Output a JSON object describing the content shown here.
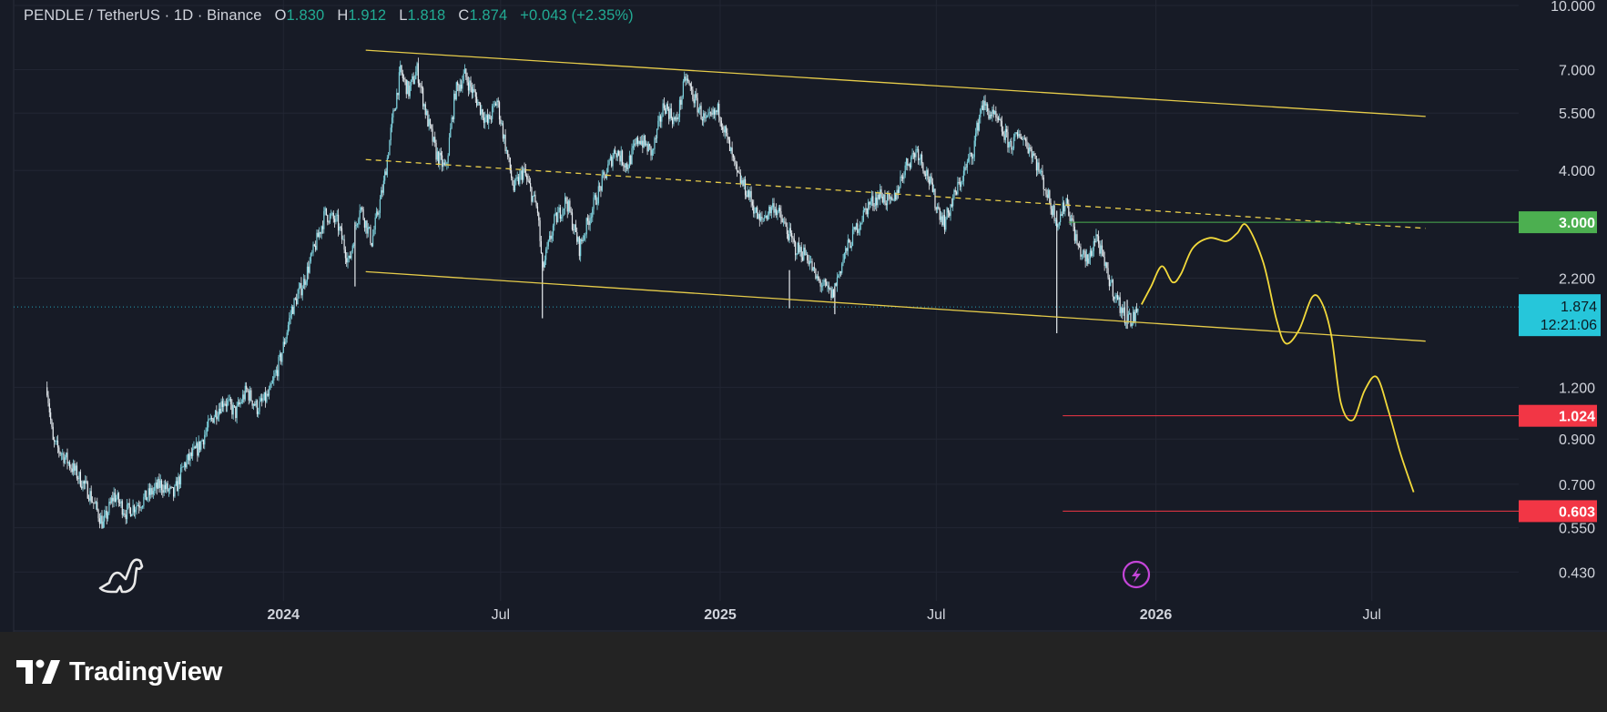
{
  "header": {
    "symbol": "PENDLE / TetherUS · 1D · Binance",
    "open_label": "O",
    "open": "1.830",
    "high_label": "H",
    "high": "1.912",
    "low_label": "L",
    "low": "1.818",
    "close_label": "C",
    "close": "1.874",
    "change": "+0.043 (+2.35%)"
  },
  "brand": {
    "name": "TradingView"
  },
  "colors": {
    "background": "#171b26",
    "grid": "#222633",
    "candle_up": "#7fd4e0",
    "candle_down": "#e8eef2",
    "channel": "#e6cc4a",
    "projection": "#f2d93b",
    "target_green": "#4caf50",
    "target_red": "#f23645",
    "price_tag": "#26c6da"
  },
  "icons": {
    "watermark": "dinosaur-icon",
    "event": "lightning-icon",
    "brand": "tradingview-logo-icon"
  },
  "chart_data": {
    "type": "candlestick",
    "y_scale": "log",
    "ylim": [
      0.37,
      10.0
    ],
    "x_range": [
      "2023-05-20",
      "2026-11-01"
    ],
    "y_ticks": [
      "10.000",
      "7.000",
      "5.500",
      "4.000",
      "2.200",
      "1.200",
      "0.900",
      "0.700",
      "0.550",
      "0.430"
    ],
    "x_ticks": [
      {
        "label": "2024",
        "date": "2024-01-01"
      },
      {
        "label": "Jul",
        "date": "2024-07-01"
      },
      {
        "label": "2025",
        "date": "2025-01-01"
      },
      {
        "label": "Jul",
        "date": "2025-07-01"
      },
      {
        "label": "2026",
        "date": "2026-01-01"
      },
      {
        "label": "Jul",
        "date": "2026-07-01"
      }
    ],
    "price_path": [
      [
        "2023-06-17",
        1.2
      ],
      [
        "2023-06-22",
        0.88
      ],
      [
        "2023-07-01",
        0.82
      ],
      [
        "2023-07-12",
        0.74
      ],
      [
        "2023-07-22",
        0.67
      ],
      [
        "2023-08-03",
        0.56
      ],
      [
        "2023-08-12",
        0.66
      ],
      [
        "2023-08-22",
        0.6
      ],
      [
        "2023-09-05",
        0.64
      ],
      [
        "2023-09-20",
        0.7
      ],
      [
        "2023-10-01",
        0.66
      ],
      [
        "2023-10-10",
        0.78
      ],
      [
        "2023-10-22",
        0.86
      ],
      [
        "2023-11-03",
        1.02
      ],
      [
        "2023-11-12",
        1.12
      ],
      [
        "2023-11-22",
        1.04
      ],
      [
        "2023-12-01",
        1.18
      ],
      [
        "2023-12-10",
        1.07
      ],
      [
        "2023-12-20",
        1.15
      ],
      [
        "2023-12-30",
        1.42
      ],
      [
        "2024-01-08",
        1.85
      ],
      [
        "2024-01-18",
        2.15
      ],
      [
        "2024-01-28",
        2.65
      ],
      [
        "2024-02-05",
        3.15
      ],
      [
        "2024-02-15",
        3.0
      ],
      [
        "2024-02-25",
        2.4
      ],
      [
        "2024-03-05",
        3.3
      ],
      [
        "2024-03-15",
        2.7
      ],
      [
        "2024-03-25",
        3.7
      ],
      [
        "2024-04-01",
        5.2
      ],
      [
        "2024-04-08",
        6.9
      ],
      [
        "2024-04-15",
        6.2
      ],
      [
        "2024-04-22",
        7.0
      ],
      [
        "2024-04-30",
        5.4
      ],
      [
        "2024-05-08",
        4.4
      ],
      [
        "2024-05-16",
        4.0
      ],
      [
        "2024-05-24",
        6.2
      ],
      [
        "2024-06-01",
        6.8
      ],
      [
        "2024-06-10",
        6.0
      ],
      [
        "2024-06-20",
        5.2
      ],
      [
        "2024-06-28",
        5.9
      ],
      [
        "2024-07-05",
        4.6
      ],
      [
        "2024-07-12",
        3.6
      ],
      [
        "2024-07-20",
        4.0
      ],
      [
        "2024-08-01",
        3.2
      ],
      [
        "2024-08-05",
        2.3
      ],
      [
        "2024-08-15",
        3.0
      ],
      [
        "2024-08-25",
        3.4
      ],
      [
        "2024-09-05",
        2.6
      ],
      [
        "2024-09-15",
        3.2
      ],
      [
        "2024-09-25",
        3.8
      ],
      [
        "2024-10-05",
        4.5
      ],
      [
        "2024-10-15",
        4.1
      ],
      [
        "2024-10-25",
        4.8
      ],
      [
        "2024-11-05",
        4.4
      ],
      [
        "2024-11-15",
        5.8
      ],
      [
        "2024-11-25",
        5.2
      ],
      [
        "2024-12-03",
        6.7
      ],
      [
        "2024-12-12",
        5.8
      ],
      [
        "2024-12-20",
        5.2
      ],
      [
        "2024-12-31",
        5.6
      ],
      [
        "2025-01-08",
        4.6
      ],
      [
        "2025-01-15",
        3.9
      ],
      [
        "2025-01-25",
        3.5
      ],
      [
        "2025-02-03",
        3.0
      ],
      [
        "2025-02-15",
        3.3
      ],
      [
        "2025-02-25",
        2.9
      ],
      [
        "2025-03-05",
        2.6
      ],
      [
        "2025-03-15",
        2.5
      ],
      [
        "2025-03-22",
        2.2
      ],
      [
        "2025-04-05",
        2.0
      ],
      [
        "2025-04-15",
        2.5
      ],
      [
        "2025-04-25",
        2.9
      ],
      [
        "2025-05-05",
        3.3
      ],
      [
        "2025-05-15",
        3.5
      ],
      [
        "2025-05-25",
        3.3
      ],
      [
        "2025-06-05",
        4.1
      ],
      [
        "2025-06-15",
        4.5
      ],
      [
        "2025-06-25",
        3.8
      ],
      [
        "2025-07-01",
        3.3
      ],
      [
        "2025-07-08",
        3.0
      ],
      [
        "2025-07-15",
        3.4
      ],
      [
        "2025-07-25",
        4.0
      ],
      [
        "2025-08-01",
        4.5
      ],
      [
        "2025-08-08",
        5.8
      ],
      [
        "2025-08-15",
        5.5
      ],
      [
        "2025-08-22",
        5.2
      ],
      [
        "2025-09-01",
        4.6
      ],
      [
        "2025-09-10",
        4.9
      ],
      [
        "2025-09-20",
        4.4
      ],
      [
        "2025-09-28",
        3.8
      ],
      [
        "2025-10-05",
        3.3
      ],
      [
        "2025-10-11",
        3.0
      ],
      [
        "2025-10-18",
        3.4
      ],
      [
        "2025-10-28",
        2.6
      ],
      [
        "2025-11-05",
        2.4
      ],
      [
        "2025-11-12",
        2.8
      ],
      [
        "2025-11-20",
        2.3
      ],
      [
        "2025-11-28",
        2.0
      ],
      [
        "2025-12-05",
        1.8
      ],
      [
        "2025-12-12",
        1.74
      ],
      [
        "2025-12-18",
        1.87
      ]
    ],
    "spikes": [
      [
        "2024-03-01",
        3.0,
        2.1
      ],
      [
        "2024-08-05",
        2.5,
        1.76
      ],
      [
        "2025-02-28",
        2.3,
        1.86
      ],
      [
        "2025-04-07",
        2.1,
        1.8
      ],
      [
        "2025-10-10",
        3.2,
        1.62
      ],
      [
        "2025-12-08",
        1.95,
        1.66
      ]
    ],
    "channel_top": [
      [
        "2024-03-10",
        7.8
      ],
      [
        "2026-08-15",
        5.4
      ]
    ],
    "channel_mid": [
      [
        "2024-03-10",
        4.25
      ],
      [
        "2026-08-15",
        2.9
      ]
    ],
    "channel_bottom": [
      [
        "2024-03-10",
        2.28
      ],
      [
        "2026-08-15",
        1.55
      ]
    ],
    "levels": [
      {
        "label": "3.000",
        "value": 3.0,
        "start": "2025-10-20",
        "type": "resistance"
      },
      {
        "label": "1.024",
        "value": 1.024,
        "start": "2025-10-15",
        "type": "support"
      },
      {
        "label": "0.603",
        "value": 0.603,
        "start": "2025-10-15",
        "type": "support"
      }
    ],
    "last_price": {
      "value": 1.874,
      "label": "1.874",
      "countdown": "12:21:06"
    },
    "projection": [
      [
        "2025-12-20",
        1.9
      ],
      [
        "2025-12-28",
        2.1
      ],
      [
        "2026-01-06",
        2.35
      ],
      [
        "2026-01-15",
        2.15
      ],
      [
        "2026-01-22",
        2.25
      ],
      [
        "2026-02-01",
        2.6
      ],
      [
        "2026-02-15",
        2.75
      ],
      [
        "2026-03-01",
        2.7
      ],
      [
        "2026-03-10",
        2.82
      ],
      [
        "2026-03-18",
        2.95
      ],
      [
        "2026-04-01",
        2.4
      ],
      [
        "2026-04-12",
        1.75
      ],
      [
        "2026-04-20",
        1.53
      ],
      [
        "2026-05-01",
        1.65
      ],
      [
        "2026-05-12",
        1.98
      ],
      [
        "2026-05-20",
        1.92
      ],
      [
        "2026-05-28",
        1.6
      ],
      [
        "2026-06-05",
        1.1
      ],
      [
        "2026-06-15",
        1.0
      ],
      [
        "2026-06-25",
        1.18
      ],
      [
        "2026-07-05",
        1.27
      ],
      [
        "2026-07-15",
        1.05
      ],
      [
        "2026-07-25",
        0.83
      ],
      [
        "2026-08-05",
        0.67
      ]
    ]
  }
}
